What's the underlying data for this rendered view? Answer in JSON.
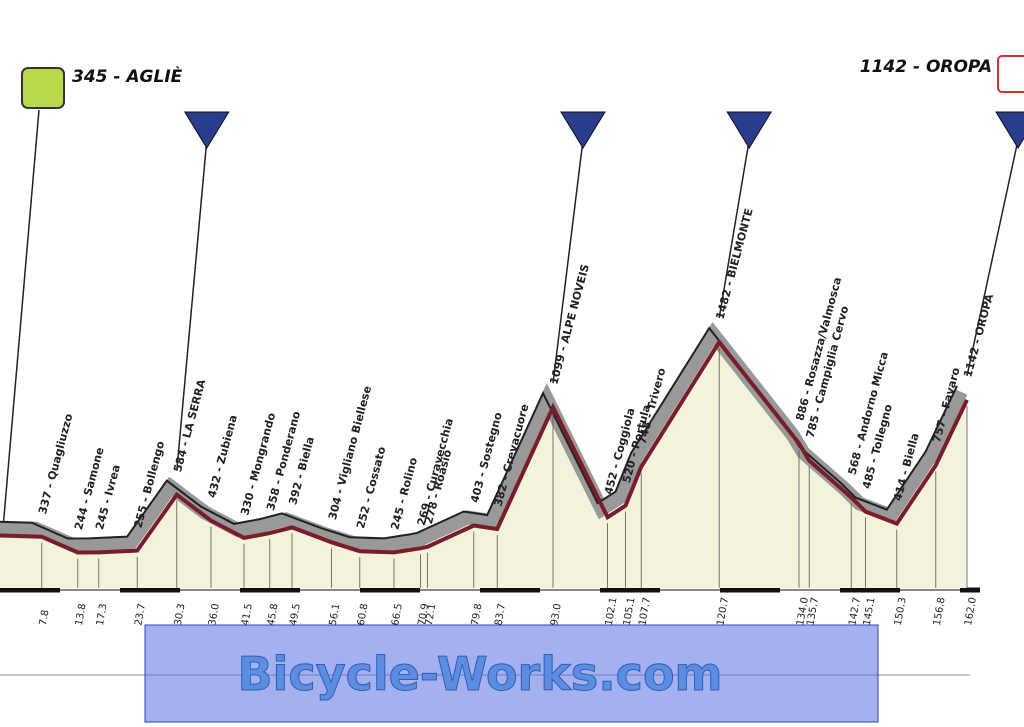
{
  "start": "345 - AGLIÈ",
  "finish": "1142 - OROPA",
  "places": [
    {
      "label": "337 - Quagliuzzo",
      "km": "7.8"
    },
    {
      "label": "244 - Samone",
      "km": "13.8"
    },
    {
      "label": "245 - Ivrea",
      "km": "17.3"
    },
    {
      "label": "255 - Bollengo",
      "km": "23.7"
    },
    {
      "label": "584 - LA SERRA",
      "km": "30.3"
    },
    {
      "label": "432 - Zubiena",
      "km": "36.0"
    },
    {
      "label": "330 - Mongrando",
      "km": "41.5"
    },
    {
      "label": "358 - Ponderano",
      "km": "45.8"
    },
    {
      "label": "392 - Biella",
      "km": "49.5"
    },
    {
      "label": "304 - Vigliano Biellese",
      "km": "56.1"
    },
    {
      "label": "252 - Cossato",
      "km": "60.8"
    },
    {
      "label": "245 - Rolino",
      "km": "66.5"
    },
    {
      "label": "269 - Curavecchia",
      "km": "70.9"
    },
    {
      "label": "278 - Roasio",
      "km": "72.1"
    },
    {
      "label": "403 - Sostegno",
      "km": "79.8"
    },
    {
      "label": "382 - Crevacuore",
      "km": "83.7"
    },
    {
      "label": "1099 - ALPE NOVEIS",
      "km": "93.0"
    },
    {
      "label": "452 - Coggiola",
      "km": "102.1"
    },
    {
      "label": "520 - Portula",
      "km": "105.1"
    },
    {
      "label": "748 - Trivero",
      "km": "107.7"
    },
    {
      "label": "1482 - BIELMONTE",
      "km": "120.7"
    },
    {
      "label": "886 - Rosazza/Valmosca",
      "km": "134.0"
    },
    {
      "label": "785 - Campiglia Cervo",
      "km": "135.7"
    },
    {
      "label": "568 - Andorno Micca",
      "km": "142.7"
    },
    {
      "label": "485 - Tollegno",
      "km": "145.1"
    },
    {
      "label": "414 - Biella",
      "km": "150.3"
    },
    {
      "label": "757 - Favaro",
      "km": "156.8"
    },
    {
      "label": "1142 - OROPA",
      "km": "162.0"
    }
  ],
  "watermark": "Bicycle-Works.com"
}
